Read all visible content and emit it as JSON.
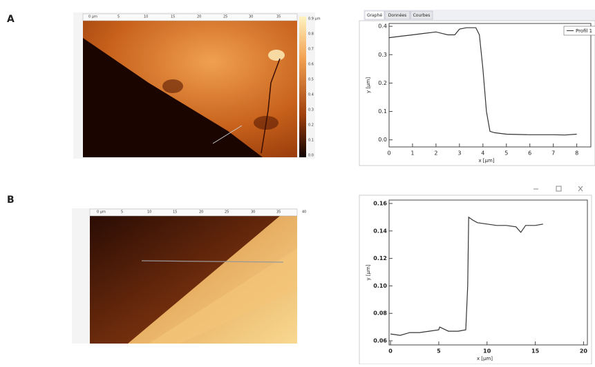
{
  "panels": [
    "A",
    "B"
  ],
  "tabs": [
    "Graphé",
    "Données",
    "Courbes"
  ],
  "images": [
    {
      "ruler": [
        "0 µm",
        "5",
        "10",
        "15",
        "20",
        "25",
        "30",
        "35"
      ],
      "colorbar": [
        "0.9 µm",
        "0.8",
        "0.7",
        "0.6",
        "0.5",
        "0.4",
        "0.3",
        "0.2",
        "0.1",
        "0.0"
      ]
    },
    {
      "ruler": [
        "0 µm",
        "5",
        "10",
        "15",
        "20",
        "25",
        "30",
        "35",
        "40"
      ]
    }
  ],
  "chart_data": [
    {
      "type": "line",
      "xlabel": "x [µm]",
      "ylabel": "y [µm]",
      "x": [
        0,
        0.5,
        1,
        1.5,
        2,
        2.5,
        2.8,
        3,
        3.3,
        3.7,
        3.85,
        4.0,
        4.15,
        4.3,
        4.5,
        5,
        6,
        7,
        7.5,
        8
      ],
      "series": [
        {
          "name": "Profil 1",
          "color": "#333333",
          "values": [
            0.36,
            0.365,
            0.37,
            0.375,
            0.38,
            0.37,
            0.37,
            0.39,
            0.395,
            0.395,
            0.37,
            0.25,
            0.1,
            0.03,
            0.025,
            0.02,
            0.018,
            0.018,
            0.017,
            0.02
          ]
        }
      ],
      "xlim": [
        0,
        8.6
      ],
      "ylim": [
        -0.025,
        0.41
      ],
      "xticks": [
        0,
        1,
        2,
        3,
        4,
        5,
        6,
        7,
        8
      ],
      "yticks": [
        {
          "value": 0,
          "label": "0.0"
        },
        0.1,
        0.2,
        0.3,
        0.4
      ],
      "legend": "upper right"
    },
    {
      "type": "line",
      "xlabel": "x [µm]",
      "ylabel": "y [µm]",
      "x": [
        0,
        1,
        2,
        3,
        4,
        5,
        5.1,
        6,
        7,
        7.8,
        8.0,
        8.1,
        8.5,
        9,
        10,
        11,
        12,
        13,
        13.5,
        14,
        15,
        15.8
      ],
      "series": [
        {
          "color": "#333333",
          "values": [
            0.065,
            0.064,
            0.066,
            0.066,
            0.067,
            0.068,
            0.07,
            0.067,
            0.067,
            0.068,
            0.1,
            0.15,
            0.148,
            0.146,
            0.145,
            0.144,
            0.144,
            0.143,
            0.139,
            0.144,
            0.144,
            0.145
          ]
        }
      ],
      "xlim": [
        -0.15,
        20.4
      ],
      "ylim": [
        0.057,
        0.1625
      ],
      "xticks": [
        0,
        5,
        10,
        15,
        20
      ],
      "yticks": [
        0.06,
        0.08,
        {
          "value": 0.1,
          "label": "0.10"
        },
        0.12,
        0.14,
        0.16
      ]
    }
  ]
}
